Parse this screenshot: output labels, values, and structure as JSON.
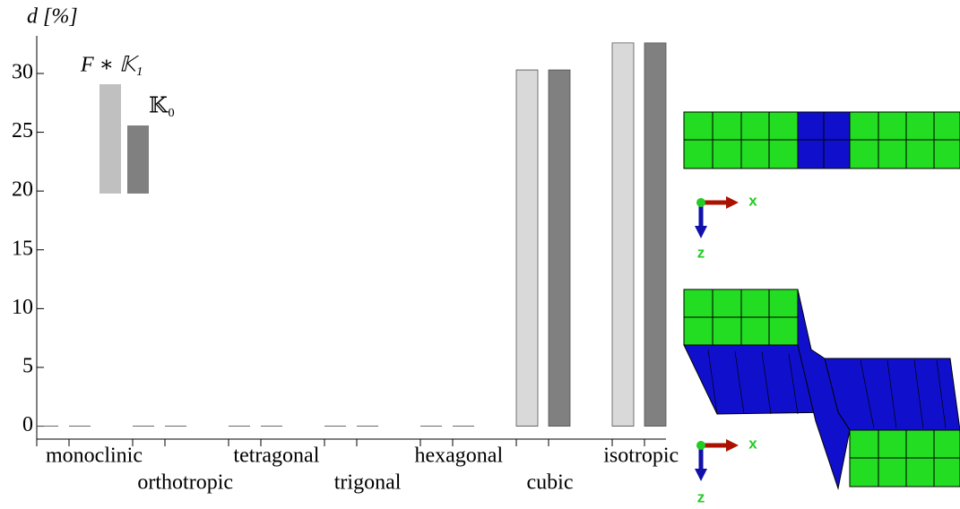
{
  "chart_data": {
    "type": "bar",
    "y_label": "d [%]",
    "categories": [
      "monoclinic",
      "orthotropic",
      "tetragonal",
      "trigonal",
      "hexagonal",
      "cubic",
      "isotropic"
    ],
    "series": [
      {
        "name": "F ∗ 𝕂₁",
        "color": "#d9d9d9",
        "values": [
          0,
          0,
          0,
          0,
          0,
          30.3,
          32.6
        ]
      },
      {
        "name": "𝕂₀",
        "color": "#808080",
        "values": [
          0,
          0,
          0,
          0,
          0,
          30.3,
          32.6
        ]
      }
    ],
    "ylim": [
      -1.1,
      33.2
    ],
    "yticks": [
      0,
      5,
      10,
      15,
      20,
      25,
      30
    ],
    "grid": false
  },
  "triad_labels": {
    "x": "x",
    "z": "z"
  }
}
